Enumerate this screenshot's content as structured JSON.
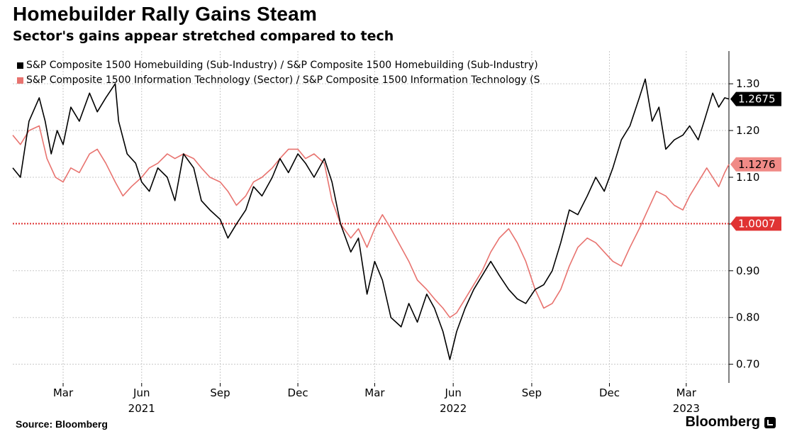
{
  "title": "Homebuilder Rally Gains Steam",
  "subtitle": "Sector's gains appear stretched compared to tech",
  "source": "Source: Bloomberg",
  "brand": "Bloomberg",
  "colors": {
    "homebuilding": "#000000",
    "tech": "#e8736f",
    "reference": "#e03333"
  },
  "chart_data": {
    "type": "line",
    "title": "Homebuilder Rally Gains Steam",
    "subtitle": "Sector's gains appear stretched compared to tech",
    "xlabel": "",
    "ylabel": "",
    "x_range": [
      "2021-01-01",
      "2023-04-20"
    ],
    "ylim": [
      0.66,
      1.37
    ],
    "y_ticks": [
      0.7,
      0.8,
      0.9,
      1.0,
      1.1,
      1.2,
      1.3
    ],
    "y_tick_labels": [
      "0.70",
      "0.80",
      "0.90",
      "",
      "1.10",
      "1.20",
      "1.30"
    ],
    "y_axis_side": "right",
    "grid": true,
    "legend": "top-left",
    "x_ticks": [
      {
        "date": "2021-03-01",
        "label": "Mar"
      },
      {
        "date": "2021-06-01",
        "label": "Jun"
      },
      {
        "date": "2021-09-01",
        "label": "Sep"
      },
      {
        "date": "2021-12-01",
        "label": "Dec"
      },
      {
        "date": "2022-03-01",
        "label": "Mar"
      },
      {
        "date": "2022-06-01",
        "label": "Jun"
      },
      {
        "date": "2022-09-01",
        "label": "Sep"
      },
      {
        "date": "2022-12-01",
        "label": "Dec"
      },
      {
        "date": "2023-03-01",
        "label": "Mar"
      }
    ],
    "year_labels": [
      {
        "date": "2021-06-01",
        "label": "2021"
      },
      {
        "date": "2022-06-01",
        "label": "2022"
      },
      {
        "date": "2023-03-01",
        "label": "2023"
      }
    ],
    "reference_line": {
      "value": 1.0007,
      "label": "1.0007"
    },
    "series": [
      {
        "name": "S&P Composite 1500 Homebuilding (Sub-Industry) / S&P Composite 1500 Homebuilding (Sub-Industry)",
        "last_label": "1.2675",
        "points": [
          [
            "2021-01-01",
            1.12
          ],
          [
            "2021-01-10",
            1.1
          ],
          [
            "2021-01-20",
            1.22
          ],
          [
            "2021-02-01",
            1.27
          ],
          [
            "2021-02-08",
            1.22
          ],
          [
            "2021-02-15",
            1.15
          ],
          [
            "2021-02-22",
            1.2
          ],
          [
            "2021-03-01",
            1.17
          ],
          [
            "2021-03-10",
            1.25
          ],
          [
            "2021-03-20",
            1.22
          ],
          [
            "2021-04-01",
            1.28
          ],
          [
            "2021-04-10",
            1.24
          ],
          [
            "2021-04-20",
            1.27
          ],
          [
            "2021-05-01",
            1.3
          ],
          [
            "2021-05-05",
            1.22
          ],
          [
            "2021-05-15",
            1.15
          ],
          [
            "2021-05-25",
            1.13
          ],
          [
            "2021-06-01",
            1.09
          ],
          [
            "2021-06-10",
            1.07
          ],
          [
            "2021-06-20",
            1.12
          ],
          [
            "2021-07-01",
            1.1
          ],
          [
            "2021-07-10",
            1.05
          ],
          [
            "2021-07-20",
            1.15
          ],
          [
            "2021-08-01",
            1.12
          ],
          [
            "2021-08-10",
            1.05
          ],
          [
            "2021-08-20",
            1.03
          ],
          [
            "2021-09-01",
            1.01
          ],
          [
            "2021-09-10",
            0.97
          ],
          [
            "2021-09-20",
            1.0
          ],
          [
            "2021-10-01",
            1.03
          ],
          [
            "2021-10-10",
            1.08
          ],
          [
            "2021-10-20",
            1.06
          ],
          [
            "2021-11-01",
            1.1
          ],
          [
            "2021-11-10",
            1.14
          ],
          [
            "2021-11-20",
            1.11
          ],
          [
            "2021-12-01",
            1.15
          ],
          [
            "2021-12-10",
            1.13
          ],
          [
            "2021-12-20",
            1.1
          ],
          [
            "2022-01-01",
            1.14
          ],
          [
            "2022-01-10",
            1.09
          ],
          [
            "2022-01-20",
            1.0
          ],
          [
            "2022-02-01",
            0.94
          ],
          [
            "2022-02-10",
            0.97
          ],
          [
            "2022-02-20",
            0.85
          ],
          [
            "2022-03-01",
            0.92
          ],
          [
            "2022-03-10",
            0.88
          ],
          [
            "2022-03-20",
            0.8
          ],
          [
            "2022-04-01",
            0.78
          ],
          [
            "2022-04-10",
            0.83
          ],
          [
            "2022-04-20",
            0.79
          ],
          [
            "2022-05-01",
            0.85
          ],
          [
            "2022-05-10",
            0.82
          ],
          [
            "2022-05-20",
            0.77
          ],
          [
            "2022-05-28",
            0.71
          ],
          [
            "2022-06-05",
            0.77
          ],
          [
            "2022-06-15",
            0.82
          ],
          [
            "2022-06-25",
            0.86
          ],
          [
            "2022-07-05",
            0.89
          ],
          [
            "2022-07-15",
            0.92
          ],
          [
            "2022-07-25",
            0.89
          ],
          [
            "2022-08-05",
            0.86
          ],
          [
            "2022-08-15",
            0.84
          ],
          [
            "2022-08-25",
            0.83
          ],
          [
            "2022-09-05",
            0.86
          ],
          [
            "2022-09-15",
            0.87
          ],
          [
            "2022-09-25",
            0.9
          ],
          [
            "2022-10-05",
            0.96
          ],
          [
            "2022-10-15",
            1.03
          ],
          [
            "2022-10-25",
            1.02
          ],
          [
            "2022-11-05",
            1.06
          ],
          [
            "2022-11-15",
            1.1
          ],
          [
            "2022-11-25",
            1.07
          ],
          [
            "2022-12-05",
            1.12
          ],
          [
            "2022-12-15",
            1.18
          ],
          [
            "2022-12-25",
            1.21
          ],
          [
            "2023-01-05",
            1.27
          ],
          [
            "2023-01-12",
            1.31
          ],
          [
            "2023-01-20",
            1.22
          ],
          [
            "2023-01-28",
            1.25
          ],
          [
            "2023-02-05",
            1.16
          ],
          [
            "2023-02-15",
            1.18
          ],
          [
            "2023-02-25",
            1.19
          ],
          [
            "2023-03-05",
            1.21
          ],
          [
            "2023-03-15",
            1.18
          ],
          [
            "2023-03-22",
            1.22
          ],
          [
            "2023-04-01",
            1.28
          ],
          [
            "2023-04-08",
            1.25
          ],
          [
            "2023-04-15",
            1.27
          ],
          [
            "2023-04-20",
            1.2675
          ]
        ]
      },
      {
        "name": "S&P Composite 1500 Information Technology (Sector) / S&P Composite 1500 Information Technology (S",
        "last_label": "1.1276",
        "points": [
          [
            "2021-01-01",
            1.19
          ],
          [
            "2021-01-10",
            1.17
          ],
          [
            "2021-01-20",
            1.2
          ],
          [
            "2021-02-01",
            1.21
          ],
          [
            "2021-02-10",
            1.14
          ],
          [
            "2021-02-20",
            1.1
          ],
          [
            "2021-03-01",
            1.09
          ],
          [
            "2021-03-10",
            1.12
          ],
          [
            "2021-03-20",
            1.11
          ],
          [
            "2021-04-01",
            1.15
          ],
          [
            "2021-04-10",
            1.16
          ],
          [
            "2021-04-20",
            1.13
          ],
          [
            "2021-05-01",
            1.09
          ],
          [
            "2021-05-10",
            1.06
          ],
          [
            "2021-05-20",
            1.08
          ],
          [
            "2021-06-01",
            1.1
          ],
          [
            "2021-06-10",
            1.12
          ],
          [
            "2021-06-20",
            1.13
          ],
          [
            "2021-07-01",
            1.15
          ],
          [
            "2021-07-10",
            1.14
          ],
          [
            "2021-07-20",
            1.15
          ],
          [
            "2021-08-01",
            1.14
          ],
          [
            "2021-08-10",
            1.12
          ],
          [
            "2021-08-20",
            1.1
          ],
          [
            "2021-09-01",
            1.09
          ],
          [
            "2021-09-10",
            1.07
          ],
          [
            "2021-09-20",
            1.04
          ],
          [
            "2021-10-01",
            1.06
          ],
          [
            "2021-10-10",
            1.09
          ],
          [
            "2021-10-20",
            1.1
          ],
          [
            "2021-11-01",
            1.12
          ],
          [
            "2021-11-10",
            1.14
          ],
          [
            "2021-11-20",
            1.16
          ],
          [
            "2021-12-01",
            1.16
          ],
          [
            "2021-12-10",
            1.14
          ],
          [
            "2021-12-20",
            1.15
          ],
          [
            "2022-01-01",
            1.13
          ],
          [
            "2022-01-10",
            1.05
          ],
          [
            "2022-01-20",
            1.0
          ],
          [
            "2022-02-01",
            0.97
          ],
          [
            "2022-02-10",
            0.99
          ],
          [
            "2022-02-20",
            0.95
          ],
          [
            "2022-03-01",
            0.99
          ],
          [
            "2022-03-10",
            1.02
          ],
          [
            "2022-03-20",
            0.99
          ],
          [
            "2022-04-01",
            0.95
          ],
          [
            "2022-04-10",
            0.92
          ],
          [
            "2022-04-20",
            0.88
          ],
          [
            "2022-05-01",
            0.86
          ],
          [
            "2022-05-10",
            0.84
          ],
          [
            "2022-05-20",
            0.82
          ],
          [
            "2022-05-28",
            0.8
          ],
          [
            "2022-06-05",
            0.81
          ],
          [
            "2022-06-15",
            0.84
          ],
          [
            "2022-06-25",
            0.87
          ],
          [
            "2022-07-05",
            0.9
          ],
          [
            "2022-07-15",
            0.94
          ],
          [
            "2022-07-25",
            0.97
          ],
          [
            "2022-08-05",
            0.99
          ],
          [
            "2022-08-15",
            0.96
          ],
          [
            "2022-08-25",
            0.92
          ],
          [
            "2022-09-05",
            0.86
          ],
          [
            "2022-09-15",
            0.82
          ],
          [
            "2022-09-25",
            0.83
          ],
          [
            "2022-10-05",
            0.86
          ],
          [
            "2022-10-15",
            0.91
          ],
          [
            "2022-10-25",
            0.95
          ],
          [
            "2022-11-05",
            0.97
          ],
          [
            "2022-11-15",
            0.96
          ],
          [
            "2022-11-25",
            0.94
          ],
          [
            "2022-12-05",
            0.92
          ],
          [
            "2022-12-15",
            0.91
          ],
          [
            "2022-12-25",
            0.95
          ],
          [
            "2023-01-05",
            0.99
          ],
          [
            "2023-01-15",
            1.03
          ],
          [
            "2023-01-25",
            1.07
          ],
          [
            "2023-02-05",
            1.06
          ],
          [
            "2023-02-15",
            1.04
          ],
          [
            "2023-02-25",
            1.03
          ],
          [
            "2023-03-05",
            1.06
          ],
          [
            "2023-03-15",
            1.09
          ],
          [
            "2023-03-25",
            1.12
          ],
          [
            "2023-04-01",
            1.1
          ],
          [
            "2023-04-08",
            1.08
          ],
          [
            "2023-04-15",
            1.11
          ],
          [
            "2023-04-20",
            1.1276
          ]
        ]
      }
    ]
  }
}
